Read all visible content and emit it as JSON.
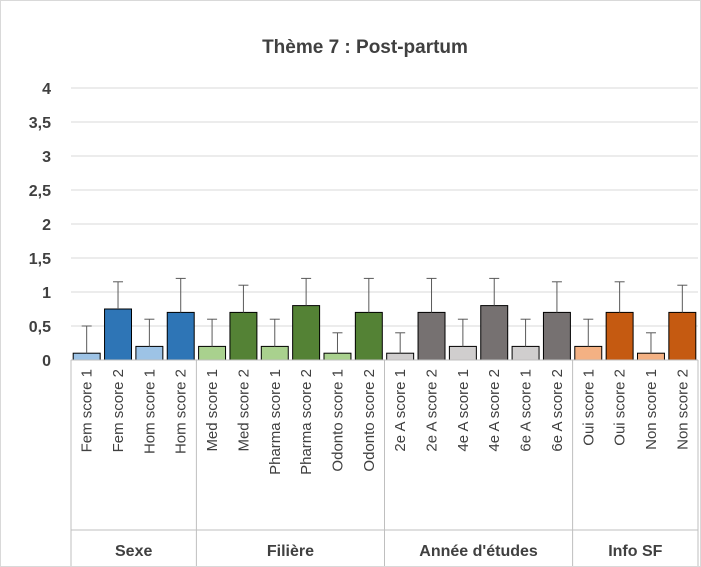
{
  "chart_data": {
    "type": "bar",
    "title": "Thème 7 : Post-partum",
    "xlabel": "",
    "ylabel": "",
    "ylim": [
      0,
      4
    ],
    "y_ticks": [
      "0",
      "0,5",
      "1",
      "1,5",
      "2",
      "2,5",
      "3",
      "3,5",
      "4"
    ],
    "grid": true,
    "legend": "none",
    "error_bars": true,
    "categories": [
      "Fem score 1",
      "Fem score 2",
      "Hom score 1",
      "Hom score 2",
      "Med score 1",
      "Med score 2",
      "Pharma score 1",
      "Pharma score 2",
      "Odonto score 1",
      "Odonto score 2",
      "2e A score 1",
      "2e A score 2",
      "4e A score 1",
      "4e A score 2",
      "6e A score 1",
      "6e A score 2",
      "Oui score 1",
      "Oui score 2",
      "Non score 1",
      "Non score 2"
    ],
    "values": [
      0.1,
      0.75,
      0.2,
      0.7,
      0.2,
      0.7,
      0.2,
      0.8,
      0.1,
      0.7,
      0.1,
      0.7,
      0.2,
      0.8,
      0.2,
      0.7,
      0.2,
      0.7,
      0.1,
      0.7
    ],
    "errors": [
      0.4,
      0.4,
      0.4,
      0.5,
      0.4,
      0.4,
      0.4,
      0.4,
      0.3,
      0.5,
      0.3,
      0.5,
      0.4,
      0.4,
      0.4,
      0.45,
      0.4,
      0.45,
      0.3,
      0.4
    ],
    "colors": [
      "#9dc3e6",
      "#2e75b6",
      "#9dc3e6",
      "#2e75b6",
      "#a9d18e",
      "#548235",
      "#a9d18e",
      "#548235",
      "#a9d18e",
      "#548235",
      "#d0cece",
      "#767171",
      "#d0cece",
      "#767171",
      "#d0cece",
      "#767171",
      "#f4b183",
      "#c55a11",
      "#f4b183",
      "#c55a11"
    ],
    "groups": [
      {
        "name": "Sexe",
        "count": 4
      },
      {
        "name": "Filière",
        "count": 6
      },
      {
        "name": "Année d'études",
        "count": 6
      },
      {
        "name": "Info SF",
        "count": 4
      }
    ]
  }
}
